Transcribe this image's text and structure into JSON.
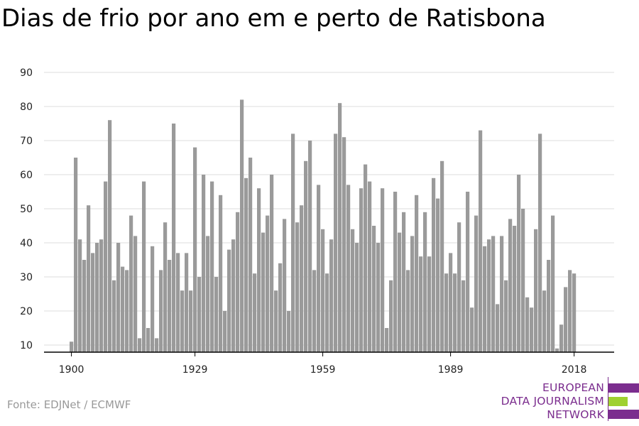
{
  "title": "Dias de frio por ano em e perto de Ratisbona",
  "source": "Fonte: EDJNet / ECMWF",
  "logo": {
    "lines": [
      "EUROPEAN",
      "DATA JOURNALISM",
      "NETWORK"
    ],
    "colors": {
      "purple": "#7b2d8e",
      "green": "#9fd130"
    }
  },
  "colors": {
    "bar": "#9a9a9a",
    "grid": "#dcdcdc",
    "axis": "#000000",
    "tick_label": "#222222"
  },
  "chart_data": {
    "type": "bar",
    "title": "Dias de frio por ano em e perto de Ratisbona",
    "xlabel": "",
    "ylabel": "",
    "ylim": [
      7,
      90
    ],
    "yticks": [
      10,
      20,
      30,
      40,
      50,
      60,
      70,
      80,
      90
    ],
    "xticks": [
      1900,
      1929,
      1959,
      1989,
      2018
    ],
    "grid": true,
    "x": [
      1900,
      1901,
      1902,
      1903,
      1904,
      1905,
      1906,
      1907,
      1908,
      1909,
      1910,
      1911,
      1912,
      1913,
      1914,
      1915,
      1916,
      1917,
      1918,
      1919,
      1920,
      1921,
      1922,
      1923,
      1924,
      1925,
      1926,
      1927,
      1928,
      1929,
      1930,
      1931,
      1932,
      1933,
      1934,
      1935,
      1936,
      1937,
      1938,
      1939,
      1940,
      1941,
      1942,
      1943,
      1944,
      1945,
      1946,
      1947,
      1948,
      1949,
      1950,
      1951,
      1952,
      1953,
      1954,
      1955,
      1956,
      1957,
      1958,
      1959,
      1960,
      1961,
      1962,
      1963,
      1964,
      1965,
      1966,
      1967,
      1968,
      1969,
      1970,
      1971,
      1972,
      1973,
      1974,
      1975,
      1976,
      1977,
      1978,
      1979,
      1980,
      1981,
      1982,
      1983,
      1984,
      1985,
      1986,
      1987,
      1988,
      1989,
      1990,
      1991,
      1992,
      1993,
      1994,
      1995,
      1996,
      1997,
      1998,
      1999,
      2000,
      2001,
      2002,
      2003,
      2004,
      2005,
      2006,
      2007,
      2008,
      2009,
      2010,
      2011,
      2012,
      2013,
      2014,
      2015,
      2016,
      2017,
      2018
    ],
    "values": [
      11,
      65,
      41,
      35,
      51,
      37,
      40,
      41,
      58,
      76,
      29,
      40,
      33,
      32,
      48,
      42,
      12,
      58,
      15,
      39,
      12,
      32,
      46,
      35,
      75,
      37,
      26,
      37,
      26,
      68,
      30,
      60,
      42,
      58,
      30,
      54,
      20,
      38,
      41,
      49,
      82,
      59,
      65,
      31,
      56,
      43,
      48,
      60,
      26,
      34,
      47,
      20,
      72,
      46,
      51,
      64,
      70,
      32,
      57,
      44,
      31,
      41,
      72,
      81,
      71,
      57,
      44,
      40,
      56,
      63,
      58,
      45,
      40,
      56,
      15,
      29,
      55,
      43,
      49,
      32,
      42,
      54,
      36,
      49,
      36,
      59,
      53,
      64,
      31,
      37,
      31,
      46,
      29,
      55,
      21,
      48,
      73,
      39,
      41,
      42,
      22,
      42,
      29,
      47,
      45,
      60,
      50,
      24,
      21,
      44,
      72,
      26,
      35,
      48,
      9,
      16,
      27,
      32,
      31
    ]
  }
}
